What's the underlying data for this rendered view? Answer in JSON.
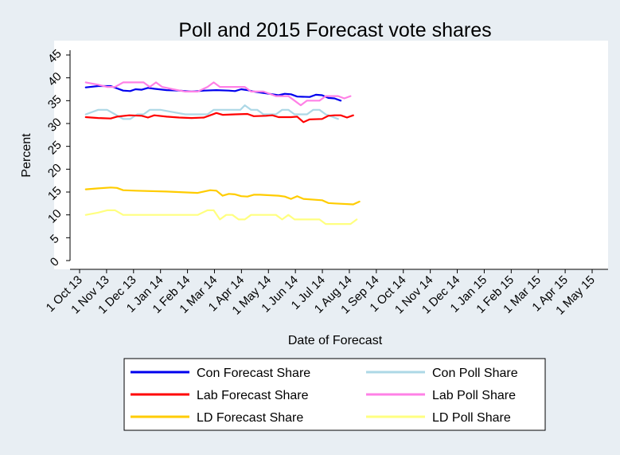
{
  "chart_data": {
    "type": "line",
    "title": "Poll and 2015 Forecast vote shares",
    "xlabel": "Date of Forecast",
    "ylabel": "Percent",
    "ylim": [
      0,
      45
    ],
    "y_ticks": [
      "0",
      "5",
      "10",
      "15",
      "20",
      "25",
      "30",
      "35",
      "40",
      "45"
    ],
    "x_ticks": [
      "1 Oct 13",
      "1 Nov 13",
      "1 Dec 13",
      "1 Jan 14",
      "1 Feb 14",
      "1 Mar 14",
      "1 Apr 14",
      "1 May 14",
      "1 Jun 14",
      "1 Jul 14",
      "1 Aug 14",
      "1 Sep 14",
      "1 Oct 14",
      "1 Nov 14",
      "1 Dec 14",
      "1 Jan 15",
      "1 Feb 15",
      "1 Mar 15",
      "1 Apr 15",
      "1 May 15"
    ],
    "xlim": [
      "2013-10-01",
      "2015-05-01"
    ],
    "grid": false,
    "legend_position": "bottom",
    "series": [
      {
        "name": "Con Forecast Share",
        "color": "#0000ee",
        "points": [
          [
            "2013-10-08",
            37.9
          ],
          [
            "2013-10-22",
            38.2
          ],
          [
            "2013-11-05",
            38.2
          ],
          [
            "2013-11-19",
            37.2
          ],
          [
            "2013-11-27",
            37.1
          ],
          [
            "2013-12-03",
            37.5
          ],
          [
            "2013-12-10",
            37.4
          ],
          [
            "2013-12-17",
            37.8
          ],
          [
            "2013-12-24",
            37.6
          ],
          [
            "2014-01-07",
            37.3
          ],
          [
            "2014-01-21",
            37.2
          ],
          [
            "2014-02-04",
            37.0
          ],
          [
            "2014-02-18",
            37.2
          ],
          [
            "2014-03-04",
            37.3
          ],
          [
            "2014-03-18",
            37.2
          ],
          [
            "2014-03-25",
            37.1
          ],
          [
            "2014-04-01",
            37.5
          ],
          [
            "2014-04-08",
            37.3
          ],
          [
            "2014-04-15",
            37.0
          ],
          [
            "2014-04-22",
            36.8
          ],
          [
            "2014-05-06",
            36.4
          ],
          [
            "2014-05-13",
            36.2
          ],
          [
            "2014-05-20",
            36.5
          ],
          [
            "2014-05-27",
            36.4
          ],
          [
            "2014-06-03",
            35.9
          ],
          [
            "2014-06-17",
            35.8
          ],
          [
            "2014-06-24",
            36.3
          ],
          [
            "2014-07-01",
            36.2
          ],
          [
            "2014-07-08",
            35.6
          ],
          [
            "2014-07-15",
            35.5
          ],
          [
            "2014-07-22",
            35.0
          ]
        ]
      },
      {
        "name": "Con Poll Share",
        "color": "#add8e6",
        "points": [
          [
            "2013-10-08",
            32.0
          ],
          [
            "2013-10-22",
            33.0
          ],
          [
            "2013-11-01",
            33.0
          ],
          [
            "2013-11-10",
            32.0
          ],
          [
            "2013-11-19",
            31.0
          ],
          [
            "2013-11-27",
            31.0
          ],
          [
            "2013-12-05",
            32.0
          ],
          [
            "2013-12-12",
            32.0
          ],
          [
            "2013-12-19",
            33.0
          ],
          [
            "2013-12-31",
            33.0
          ],
          [
            "2014-01-14",
            32.5
          ],
          [
            "2014-01-28",
            32.0
          ],
          [
            "2014-02-11",
            32.0
          ],
          [
            "2014-02-22",
            32.0
          ],
          [
            "2014-03-01",
            33.0
          ],
          [
            "2014-03-11",
            33.0
          ],
          [
            "2014-03-21",
            33.0
          ],
          [
            "2014-03-31",
            33.0
          ],
          [
            "2014-04-05",
            34.0
          ],
          [
            "2014-04-12",
            33.0
          ],
          [
            "2014-04-19",
            33.0
          ],
          [
            "2014-04-26",
            32.0
          ],
          [
            "2014-05-10",
            32.0
          ],
          [
            "2014-05-17",
            33.0
          ],
          [
            "2014-05-24",
            33.0
          ],
          [
            "2014-05-31",
            32.0
          ],
          [
            "2014-06-14",
            32.0
          ],
          [
            "2014-06-21",
            33.0
          ],
          [
            "2014-06-28",
            33.0
          ],
          [
            "2014-07-05",
            32.0
          ],
          [
            "2014-07-12",
            31.5
          ],
          [
            "2014-07-19",
            31.0
          ]
        ]
      },
      {
        "name": "Lab Forecast Share",
        "color": "#ff0000",
        "points": [
          [
            "2013-10-08",
            31.4
          ],
          [
            "2013-10-22",
            31.2
          ],
          [
            "2013-11-05",
            31.1
          ],
          [
            "2013-11-12",
            31.5
          ],
          [
            "2013-11-26",
            31.8
          ],
          [
            "2013-12-10",
            31.7
          ],
          [
            "2013-12-17",
            31.3
          ],
          [
            "2013-12-24",
            31.8
          ],
          [
            "2014-01-07",
            31.5
          ],
          [
            "2014-01-21",
            31.3
          ],
          [
            "2014-02-04",
            31.2
          ],
          [
            "2014-02-18",
            31.3
          ],
          [
            "2014-02-25",
            31.8
          ],
          [
            "2014-03-04",
            32.3
          ],
          [
            "2014-03-11",
            31.9
          ],
          [
            "2014-03-25",
            32.0
          ],
          [
            "2014-04-08",
            32.1
          ],
          [
            "2014-04-15",
            31.6
          ],
          [
            "2014-04-29",
            31.7
          ],
          [
            "2014-05-06",
            31.8
          ],
          [
            "2014-05-13",
            31.4
          ],
          [
            "2014-05-27",
            31.4
          ],
          [
            "2014-06-03",
            31.5
          ],
          [
            "2014-06-10",
            30.3
          ],
          [
            "2014-06-17",
            30.9
          ],
          [
            "2014-07-01",
            31.0
          ],
          [
            "2014-07-08",
            31.7
          ],
          [
            "2014-07-15",
            31.8
          ],
          [
            "2014-07-22",
            31.8
          ],
          [
            "2014-07-29",
            31.3
          ],
          [
            "2014-08-05",
            31.8
          ]
        ]
      },
      {
        "name": "Lab Poll Share",
        "color": "#ff80e6",
        "points": [
          [
            "2013-10-08",
            39.0
          ],
          [
            "2013-10-22",
            38.5
          ],
          [
            "2013-11-01",
            38.0
          ],
          [
            "2013-11-10",
            38.0
          ],
          [
            "2013-11-19",
            39.0
          ],
          [
            "2013-11-27",
            39.0
          ],
          [
            "2013-12-12",
            39.0
          ],
          [
            "2013-12-19",
            38.0
          ],
          [
            "2013-12-26",
            39.0
          ],
          [
            "2014-01-02",
            38.0
          ],
          [
            "2014-01-14",
            37.5
          ],
          [
            "2014-01-28",
            37.0
          ],
          [
            "2014-02-11",
            37.0
          ],
          [
            "2014-02-22",
            38.0
          ],
          [
            "2014-03-01",
            39.0
          ],
          [
            "2014-03-08",
            38.0
          ],
          [
            "2014-03-25",
            38.0
          ],
          [
            "2014-04-05",
            38.0
          ],
          [
            "2014-04-12",
            37.0
          ],
          [
            "2014-04-26",
            37.0
          ],
          [
            "2014-05-10",
            36.0
          ],
          [
            "2014-05-24",
            36.0
          ],
          [
            "2014-05-31",
            35.0
          ],
          [
            "2014-06-07",
            34.0
          ],
          [
            "2014-06-14",
            35.0
          ],
          [
            "2014-06-28",
            35.0
          ],
          [
            "2014-07-05",
            36.0
          ],
          [
            "2014-07-19",
            36.0
          ],
          [
            "2014-07-26",
            35.5
          ],
          [
            "2014-08-02",
            36.0
          ]
        ]
      },
      {
        "name": "LD Forecast Share",
        "color": "#ffcc00",
        "points": [
          [
            "2013-10-08",
            15.6
          ],
          [
            "2013-10-22",
            15.8
          ],
          [
            "2013-11-05",
            16.0
          ],
          [
            "2013-11-12",
            15.9
          ],
          [
            "2013-11-19",
            15.4
          ],
          [
            "2013-12-03",
            15.3
          ],
          [
            "2014-01-07",
            15.1
          ],
          [
            "2014-02-11",
            14.8
          ],
          [
            "2014-02-25",
            15.4
          ],
          [
            "2014-03-04",
            15.3
          ],
          [
            "2014-03-11",
            14.2
          ],
          [
            "2014-03-18",
            14.6
          ],
          [
            "2014-03-25",
            14.5
          ],
          [
            "2014-04-01",
            14.1
          ],
          [
            "2014-04-08",
            14.0
          ],
          [
            "2014-04-15",
            14.4
          ],
          [
            "2014-04-22",
            14.4
          ],
          [
            "2014-05-13",
            14.2
          ],
          [
            "2014-05-20",
            14.0
          ],
          [
            "2014-05-27",
            13.5
          ],
          [
            "2014-06-03",
            14.1
          ],
          [
            "2014-06-10",
            13.5
          ],
          [
            "2014-07-01",
            13.2
          ],
          [
            "2014-07-08",
            12.6
          ],
          [
            "2014-07-15",
            12.5
          ],
          [
            "2014-08-05",
            12.3
          ],
          [
            "2014-08-12",
            12.9
          ]
        ]
      },
      {
        "name": "LD Poll Share",
        "color": "#ffff80",
        "points": [
          [
            "2013-10-08",
            10.0
          ],
          [
            "2013-10-22",
            10.5
          ],
          [
            "2013-11-01",
            11.0
          ],
          [
            "2013-11-10",
            11.0
          ],
          [
            "2013-11-19",
            10.0
          ],
          [
            "2013-12-31",
            10.0
          ],
          [
            "2014-02-11",
            10.0
          ],
          [
            "2014-02-22",
            11.0
          ],
          [
            "2014-03-01",
            11.0
          ],
          [
            "2014-03-08",
            9.0
          ],
          [
            "2014-03-15",
            10.0
          ],
          [
            "2014-03-22",
            10.0
          ],
          [
            "2014-03-29",
            9.0
          ],
          [
            "2014-04-05",
            9.0
          ],
          [
            "2014-04-12",
            10.0
          ],
          [
            "2014-05-10",
            10.0
          ],
          [
            "2014-05-17",
            9.0
          ],
          [
            "2014-05-24",
            10.0
          ],
          [
            "2014-05-31",
            9.0
          ],
          [
            "2014-06-28",
            9.0
          ],
          [
            "2014-07-05",
            8.0
          ],
          [
            "2014-08-02",
            8.0
          ],
          [
            "2014-08-09",
            9.0
          ]
        ]
      }
    ],
    "legend": [
      {
        "label": "Con Forecast Share",
        "color": "#0000ee"
      },
      {
        "label": "Con Poll Share",
        "color": "#add8e6"
      },
      {
        "label": "Lab Forecast Share",
        "color": "#ff0000"
      },
      {
        "label": "Lab Poll Share",
        "color": "#ff80e6"
      },
      {
        "label": "LD Forecast Share",
        "color": "#ffcc00"
      },
      {
        "label": "LD Poll Share",
        "color": "#ffff80"
      }
    ]
  }
}
